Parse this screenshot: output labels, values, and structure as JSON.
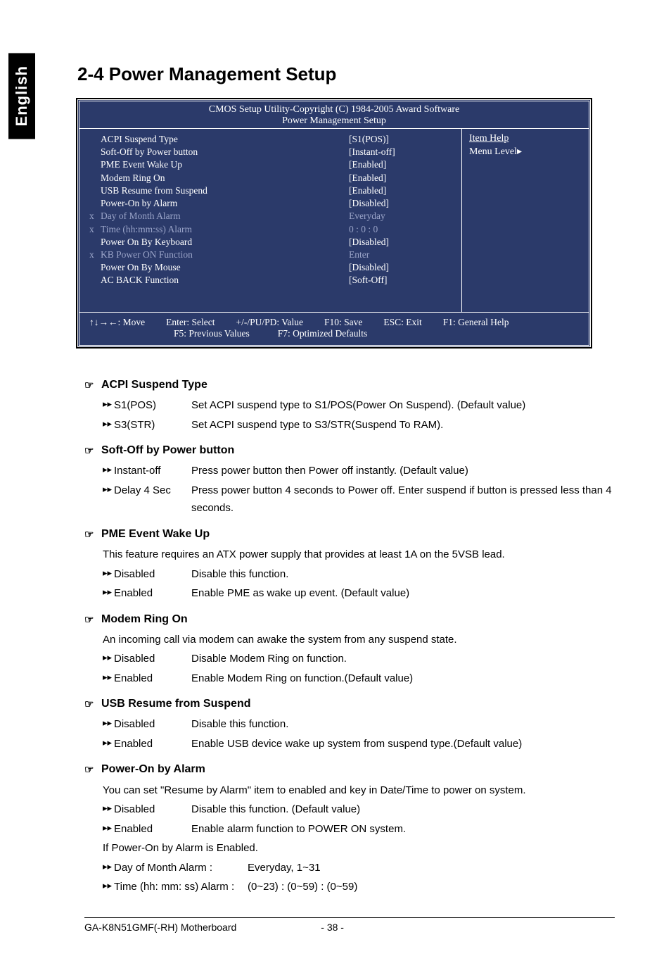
{
  "lang_tab": "English",
  "section_title": "2-4    Power Management Setup",
  "bios": {
    "header_line1": "CMOS Setup Utility-Copyright (C) 1984-2005 Award Software",
    "header_line2": "Power Management Setup",
    "rows": [
      {
        "x": "",
        "label": "ACPI Suspend Type",
        "value": "[S1(POS)]",
        "dim": false
      },
      {
        "x": "",
        "label": "Soft-Off by Power button",
        "value": "[Instant-off]",
        "dim": false
      },
      {
        "x": "",
        "label": "PME Event Wake Up",
        "value": "[Enabled]",
        "dim": false
      },
      {
        "x": "",
        "label": "Modem Ring On",
        "value": "[Enabled]",
        "dim": false
      },
      {
        "x": "",
        "label": "USB Resume from Suspend",
        "value": "[Enabled]",
        "dim": false
      },
      {
        "x": "",
        "label": "Power-On by Alarm",
        "value": "[Disabled]",
        "dim": false
      },
      {
        "x": "x",
        "label": "Day of Month Alarm",
        "value": "Everyday",
        "dim": true
      },
      {
        "x": "x",
        "label": "Time (hh:mm:ss) Alarm",
        "value": "0 : 0 : 0",
        "dim": true
      },
      {
        "x": "",
        "label": "Power On By Keyboard",
        "value": "[Disabled]",
        "dim": false
      },
      {
        "x": "x",
        "label": "KB Power ON Function",
        "value": "Enter",
        "dim": true
      },
      {
        "x": "",
        "label": "Power On By Mouse",
        "value": "[Disabled]",
        "dim": false
      },
      {
        "x": "",
        "label": "AC BACK Function",
        "value": "[Soft-Off]",
        "dim": false
      }
    ],
    "right": {
      "item_help": "Item Help",
      "menu_level": "Menu Level▸"
    },
    "footer": {
      "move": "↑↓→←: Move",
      "enter": "Enter: Select",
      "pupd": "+/-/PU/PD: Value",
      "f10": "F10: Save",
      "esc": "ESC: Exit",
      "f1": "F1: General Help",
      "f5": "F5: Previous Values",
      "f7": "F7: Optimized Defaults"
    }
  },
  "items": [
    {
      "title": "ACPI Suspend Type",
      "options": [
        {
          "label": "S1(POS)",
          "text": "Set ACPI suspend type to S1/POS(Power On Suspend). (Default value)"
        },
        {
          "label": "S3(STR)",
          "text": "Set ACPI suspend type to S3/STR(Suspend To RAM)."
        }
      ]
    },
    {
      "title": "Soft-Off by Power button",
      "options": [
        {
          "label": "Instant-off",
          "text": "Press power button then Power off instantly. (Default value)"
        },
        {
          "label": "Delay 4 Sec",
          "text": "Press power button 4 seconds to Power off. Enter suspend if button is pressed less than 4 seconds."
        }
      ]
    },
    {
      "title": "PME Event Wake Up",
      "intro": "This feature requires an ATX power supply that provides at least 1A on the 5VSB lead.",
      "options": [
        {
          "label": "Disabled",
          "text": "Disable this function."
        },
        {
          "label": "Enabled",
          "text": "Enable PME as wake up event. (Default value)"
        }
      ]
    },
    {
      "title": "Modem Ring On",
      "intro": "An incoming call via modem can awake the system from any suspend state.",
      "options": [
        {
          "label": "Disabled",
          "text": "Disable Modem Ring on function."
        },
        {
          "label": "Enabled",
          "text": "Enable Modem Ring on function.(Default value)"
        }
      ]
    },
    {
      "title": "USB Resume from Suspend",
      "options": [
        {
          "label": "Disabled",
          "text": "Disable this function."
        },
        {
          "label": "Enabled",
          "text": "Enable USB device wake up system from suspend type.(Default value)"
        }
      ]
    },
    {
      "title": "Power-On by Alarm",
      "intro": "You can set \"Resume by Alarm\" item to enabled and key in Date/Time to power on system.",
      "options": [
        {
          "label": "Disabled",
          "text": "Disable this function. (Default value)"
        },
        {
          "label": "Enabled",
          "text": "Enable alarm function to POWER ON system."
        }
      ],
      "extra_line": "If Power-On by Alarm is Enabled.",
      "extra_options": [
        {
          "label": "Day of Month Alarm :",
          "text": "Everyday, 1~31"
        },
        {
          "label": "Time (hh: mm: ss) Alarm :",
          "text": "(0~23) : (0~59) : (0~59)"
        }
      ]
    }
  ],
  "footer": {
    "left": "GA-K8N51GMF(-RH) Motherboard",
    "right": "- 38 -"
  },
  "glyphs": {
    "hand": "☞",
    "arrows": "▸▸"
  }
}
